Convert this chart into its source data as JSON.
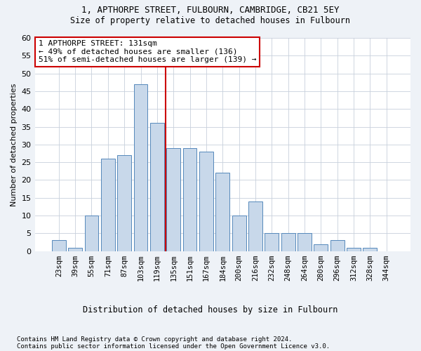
{
  "title1": "1, APTHORPE STREET, FULBOURN, CAMBRIDGE, CB21 5EY",
  "title2": "Size of property relative to detached houses in Fulbourn",
  "xlabel": "Distribution of detached houses by size in Fulbourn",
  "ylabel": "Number of detached properties",
  "categories": [
    "23sqm",
    "39sqm",
    "55sqm",
    "71sqm",
    "87sqm",
    "103sqm",
    "119sqm",
    "135sqm",
    "151sqm",
    "167sqm",
    "184sqm",
    "200sqm",
    "216sqm",
    "232sqm",
    "248sqm",
    "264sqm",
    "280sqm",
    "296sqm",
    "312sqm",
    "328sqm",
    "344sqm"
  ],
  "values": [
    3,
    1,
    10,
    26,
    27,
    47,
    36,
    29,
    29,
    28,
    22,
    10,
    14,
    5,
    5,
    5,
    2,
    3,
    1,
    1,
    0
  ],
  "bar_color": "#c8d8ea",
  "bar_edge_color": "#5588bb",
  "vline_color": "#cc0000",
  "vline_pos": 6.5,
  "annotation_line1": "1 APTHORPE STREET: 131sqm",
  "annotation_line2": "← 49% of detached houses are smaller (136)",
  "annotation_line3": "51% of semi-detached houses are larger (139) →",
  "annotation_box_color": "white",
  "annotation_box_edge_color": "#cc0000",
  "ylim": [
    0,
    60
  ],
  "yticks": [
    0,
    5,
    10,
    15,
    20,
    25,
    30,
    35,
    40,
    45,
    50,
    55,
    60
  ],
  "footer1": "Contains HM Land Registry data © Crown copyright and database right 2024.",
  "footer2": "Contains public sector information licensed under the Open Government Licence v3.0.",
  "bg_color": "#eef2f7",
  "plot_bg_color": "#ffffff",
  "grid_color": "#c8d0dc"
}
